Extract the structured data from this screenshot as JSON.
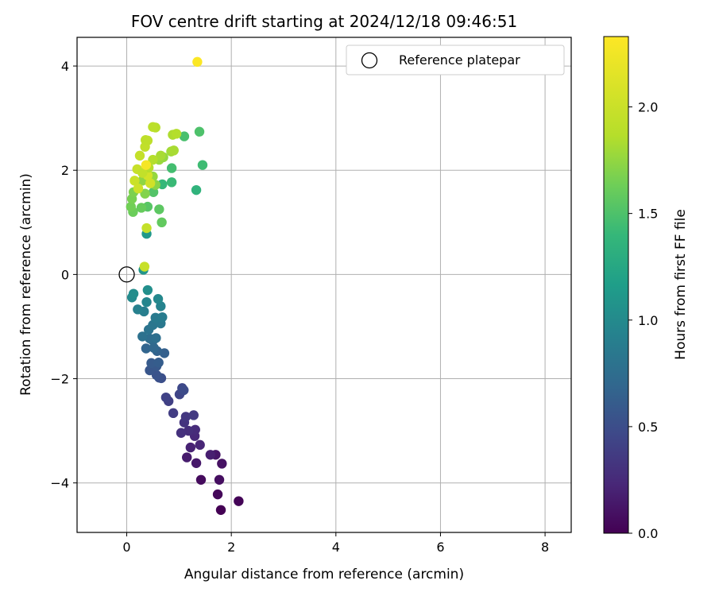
{
  "chart_data": {
    "type": "scatter",
    "title": "FOV centre drift starting at 2024/12/18 09:46:51",
    "xlabel": "Angular distance from reference (arcmin)",
    "ylabel": "Rotation from reference (arcmin)",
    "xlim": [
      -0.95,
      8.5
    ],
    "ylim": [
      -4.95,
      4.55
    ],
    "xticks": [
      0,
      2,
      4,
      6,
      8
    ],
    "xtick_labels": [
      "0",
      "2",
      "4",
      "6",
      "8"
    ],
    "yticks": [
      -4,
      -2,
      0,
      2,
      4
    ],
    "ytick_labels": [
      "−4",
      "−2",
      "0",
      "2",
      "4"
    ],
    "grid": true,
    "legend": {
      "position": "top-right",
      "entries": [
        {
          "label": "Reference platepar",
          "marker": "open-circle"
        }
      ]
    },
    "reference_point": {
      "x": 0,
      "y": 0
    },
    "colorbar": {
      "label": "Hours from first FF file",
      "colormap": "viridis",
      "range": [
        0,
        2.33
      ],
      "ticks": [
        0.0,
        0.5,
        1.0,
        1.5,
        2.0
      ],
      "tick_labels": [
        "0.0",
        "0.5",
        "1.0",
        "1.5",
        "2.0"
      ]
    },
    "points": [
      {
        "x": 1.8,
        "y": -4.52,
        "c": 0.0
      },
      {
        "x": 2.14,
        "y": -4.35,
        "c": 0.02
      },
      {
        "x": 1.74,
        "y": -4.22,
        "c": 0.04
      },
      {
        "x": 1.42,
        "y": -3.94,
        "c": 0.06
      },
      {
        "x": 1.77,
        "y": -3.94,
        "c": 0.08
      },
      {
        "x": 1.82,
        "y": -3.63,
        "c": 0.1
      },
      {
        "x": 1.7,
        "y": -3.46,
        "c": 0.12
      },
      {
        "x": 1.33,
        "y": -3.62,
        "c": 0.14
      },
      {
        "x": 1.15,
        "y": -3.51,
        "c": 0.16
      },
      {
        "x": 1.6,
        "y": -3.46,
        "c": 0.18
      },
      {
        "x": 1.22,
        "y": -3.32,
        "c": 0.2
      },
      {
        "x": 1.4,
        "y": -3.27,
        "c": 0.22
      },
      {
        "x": 1.3,
        "y": -3.1,
        "c": 0.24
      },
      {
        "x": 1.31,
        "y": -2.98,
        "c": 0.26
      },
      {
        "x": 1.18,
        "y": -3.0,
        "c": 0.28
      },
      {
        "x": 1.04,
        "y": -3.04,
        "c": 0.3
      },
      {
        "x": 1.1,
        "y": -2.84,
        "c": 0.32
      },
      {
        "x": 1.13,
        "y": -2.73,
        "c": 0.34
      },
      {
        "x": 1.28,
        "y": -2.7,
        "c": 0.36
      },
      {
        "x": 0.89,
        "y": -2.66,
        "c": 0.38
      },
      {
        "x": 0.8,
        "y": -2.43,
        "c": 0.4
      },
      {
        "x": 0.75,
        "y": -2.36,
        "c": 0.42
      },
      {
        "x": 1.01,
        "y": -2.3,
        "c": 0.44
      },
      {
        "x": 1.06,
        "y": -2.18,
        "c": 0.46
      },
      {
        "x": 1.09,
        "y": -2.22,
        "c": 0.48
      },
      {
        "x": 0.66,
        "y": -1.99,
        "c": 0.5
      },
      {
        "x": 0.62,
        "y": -1.98,
        "c": 0.52
      },
      {
        "x": 0.57,
        "y": -1.93,
        "c": 0.54
      },
      {
        "x": 0.44,
        "y": -1.84,
        "c": 0.56
      },
      {
        "x": 0.57,
        "y": -1.76,
        "c": 0.58
      },
      {
        "x": 0.47,
        "y": -1.7,
        "c": 0.6
      },
      {
        "x": 0.61,
        "y": -1.69,
        "c": 0.62
      },
      {
        "x": 0.72,
        "y": -1.51,
        "c": 0.64
      },
      {
        "x": 0.58,
        "y": -1.47,
        "c": 0.66
      },
      {
        "x": 0.37,
        "y": -1.42,
        "c": 0.68
      },
      {
        "x": 0.52,
        "y": -1.41,
        "c": 0.7
      },
      {
        "x": 0.5,
        "y": -1.27,
        "c": 0.72
      },
      {
        "x": 0.44,
        "y": -1.23,
        "c": 0.74
      },
      {
        "x": 0.56,
        "y": -1.22,
        "c": 0.76
      },
      {
        "x": 0.3,
        "y": -1.19,
        "c": 0.78
      },
      {
        "x": 0.42,
        "y": -1.06,
        "c": 0.8
      },
      {
        "x": 0.5,
        "y": -0.97,
        "c": 0.82
      },
      {
        "x": 0.65,
        "y": -0.94,
        "c": 0.84
      },
      {
        "x": 0.55,
        "y": -0.83,
        "c": 0.86
      },
      {
        "x": 0.68,
        "y": -0.82,
        "c": 0.88
      },
      {
        "x": 0.33,
        "y": -0.71,
        "c": 0.9
      },
      {
        "x": 0.21,
        "y": -0.67,
        "c": 0.92
      },
      {
        "x": 0.65,
        "y": -0.61,
        "c": 0.94
      },
      {
        "x": 0.38,
        "y": -0.53,
        "c": 0.96
      },
      {
        "x": 0.6,
        "y": -0.47,
        "c": 0.98
      },
      {
        "x": 0.1,
        "y": -0.44,
        "c": 1.0
      },
      {
        "x": 0.13,
        "y": -0.37,
        "c": 1.02
      },
      {
        "x": 0.4,
        "y": -0.3,
        "c": 1.04
      },
      {
        "x": 0.32,
        "y": 0.09,
        "c": 1.08
      },
      {
        "x": 0.38,
        "y": 0.78,
        "c": 1.12
      },
      {
        "x": 1.33,
        "y": 1.62,
        "c": 1.36
      },
      {
        "x": 0.68,
        "y": 1.73,
        "c": 1.4
      },
      {
        "x": 0.86,
        "y": 1.77,
        "c": 1.42
      },
      {
        "x": 1.45,
        "y": 2.1,
        "c": 1.44
      },
      {
        "x": 0.86,
        "y": 2.04,
        "c": 1.46
      },
      {
        "x": 1.1,
        "y": 2.65,
        "c": 1.48
      },
      {
        "x": 1.39,
        "y": 2.74,
        "c": 1.5
      },
      {
        "x": 0.51,
        "y": 1.58,
        "c": 1.52
      },
      {
        "x": 0.4,
        "y": 1.3,
        "c": 1.54
      },
      {
        "x": 0.62,
        "y": 1.25,
        "c": 1.56
      },
      {
        "x": 0.67,
        "y": 1.0,
        "c": 1.58
      },
      {
        "x": 0.28,
        "y": 1.28,
        "c": 1.6
      },
      {
        "x": 0.12,
        "y": 1.2,
        "c": 1.62
      },
      {
        "x": 0.08,
        "y": 1.3,
        "c": 1.64
      },
      {
        "x": 0.1,
        "y": 1.45,
        "c": 1.66
      },
      {
        "x": 0.13,
        "y": 1.58,
        "c": 1.68
      },
      {
        "x": 0.35,
        "y": 1.55,
        "c": 1.7
      },
      {
        "x": 0.55,
        "y": 1.72,
        "c": 1.72
      },
      {
        "x": 0.3,
        "y": 1.8,
        "c": 1.74
      },
      {
        "x": 0.5,
        "y": 1.88,
        "c": 1.76
      },
      {
        "x": 0.62,
        "y": 2.2,
        "c": 1.78
      },
      {
        "x": 0.85,
        "y": 2.36,
        "c": 1.8
      },
      {
        "x": 0.9,
        "y": 2.38,
        "c": 1.82
      },
      {
        "x": 0.88,
        "y": 2.68,
        "c": 1.84
      },
      {
        "x": 0.95,
        "y": 2.7,
        "c": 1.86
      },
      {
        "x": 0.55,
        "y": 2.82,
        "c": 1.88
      },
      {
        "x": 0.5,
        "y": 2.83,
        "c": 1.9
      },
      {
        "x": 0.4,
        "y": 2.57,
        "c": 1.92
      },
      {
        "x": 0.35,
        "y": 2.45,
        "c": 1.94
      },
      {
        "x": 0.25,
        "y": 2.28,
        "c": 1.96
      },
      {
        "x": 0.2,
        "y": 2.02,
        "c": 1.98
      },
      {
        "x": 0.15,
        "y": 1.8,
        "c": 2.0
      },
      {
        "x": 0.22,
        "y": 1.65,
        "c": 2.02
      },
      {
        "x": 0.45,
        "y": 1.75,
        "c": 2.04
      },
      {
        "x": 0.4,
        "y": 1.9,
        "c": 2.06
      },
      {
        "x": 0.36,
        "y": 2.58,
        "c": 1.92
      },
      {
        "x": 0.7,
        "y": 2.25,
        "c": 1.76
      },
      {
        "x": 0.65,
        "y": 2.28,
        "c": 1.82
      },
      {
        "x": 0.5,
        "y": 2.2,
        "c": 1.86
      },
      {
        "x": 0.42,
        "y": 2.05,
        "c": 1.88
      },
      {
        "x": 0.3,
        "y": 1.95,
        "c": 1.95
      },
      {
        "x": 0.38,
        "y": 0.89,
        "c": 1.96
      },
      {
        "x": 0.34,
        "y": 0.15,
        "c": 1.98
      },
      {
        "x": 0.37,
        "y": 2.1,
        "c": 2.28
      },
      {
        "x": 1.35,
        "y": 4.08,
        "c": 2.32
      }
    ]
  }
}
